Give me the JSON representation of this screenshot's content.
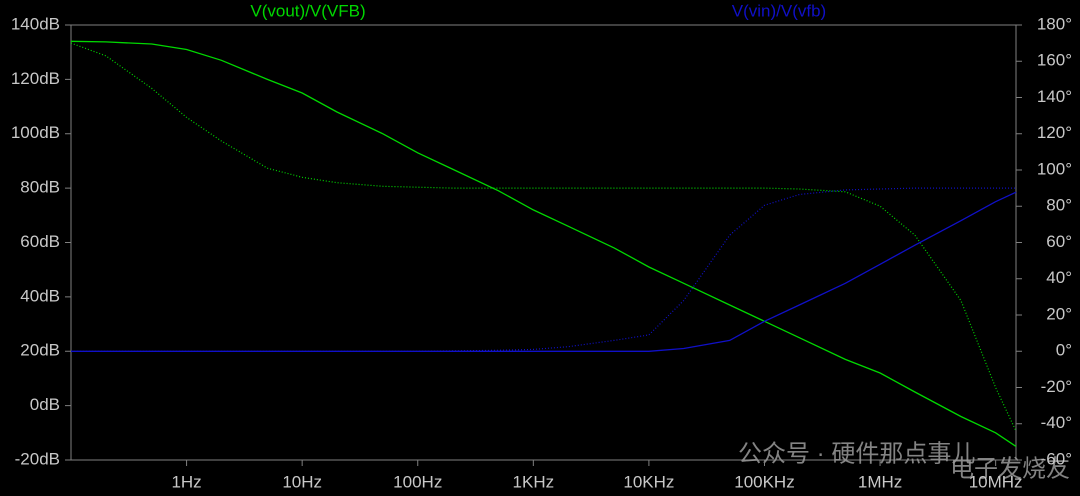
{
  "chart_data": {
    "type": "line",
    "xscale": "log",
    "grid": false,
    "x": [
      0.1,
      0.2,
      0.5,
      1,
      2,
      5,
      10,
      20,
      50,
      100,
      200,
      500,
      1000,
      2000,
      5000,
      10000,
      20000,
      50000,
      100000,
      200000,
      500000,
      1000000,
      2000000,
      5000000,
      10000000,
      15000000
    ],
    "xlim": [
      0.1,
      15000000
    ],
    "xticks": [
      {
        "value": 1,
        "label": "1Hz"
      },
      {
        "value": 10,
        "label": "10Hz"
      },
      {
        "value": 100,
        "label": "100Hz"
      },
      {
        "value": 1000,
        "label": "1KHz"
      },
      {
        "value": 10000,
        "label": "10KHz"
      },
      {
        "value": 100000,
        "label": "100KHz"
      },
      {
        "value": 1000000,
        "label": "1MHz"
      },
      {
        "value": 10000000,
        "label": "10MHz"
      }
    ],
    "ylim": [
      -20,
      140
    ],
    "yticks": [
      {
        "value": 140,
        "label": "140dB"
      },
      {
        "value": 120,
        "label": "120dB"
      },
      {
        "value": 100,
        "label": "100dB"
      },
      {
        "value": 80,
        "label": "80dB"
      },
      {
        "value": 60,
        "label": "60dB"
      },
      {
        "value": 40,
        "label": "40dB"
      },
      {
        "value": 20,
        "label": "20dB"
      },
      {
        "value": 0,
        "label": "0dB"
      },
      {
        "value": -20,
        "label": "-20dB"
      }
    ],
    "y2lim": [
      -60,
      180
    ],
    "y2ticks": [
      {
        "value": 180,
        "label": "180°"
      },
      {
        "value": 160,
        "label": "160°"
      },
      {
        "value": 140,
        "label": "140°"
      },
      {
        "value": 120,
        "label": "120°"
      },
      {
        "value": 100,
        "label": "100°"
      },
      {
        "value": 80,
        "label": "80°"
      },
      {
        "value": 60,
        "label": "60°"
      },
      {
        "value": 40,
        "label": "40°"
      },
      {
        "value": 20,
        "label": "20°"
      },
      {
        "value": 0,
        "label": "0°"
      },
      {
        "value": -20,
        "label": "-20°"
      },
      {
        "value": -40,
        "label": "-40°"
      },
      {
        "value": -60,
        "label": "-60°"
      }
    ],
    "series": [
      {
        "name": "V(vout)/V(VFB)",
        "color": "#00d800",
        "linestyle": "solid",
        "values": [
          134,
          133.8,
          133,
          131,
          127,
          120,
          115,
          108,
          100,
          93,
          87,
          79,
          72,
          66,
          58,
          51,
          45,
          37,
          31,
          25,
          17,
          12,
          5,
          -4,
          -10,
          -15
        ]
      },
      {
        "color": "#00d800",
        "linestyle": "dotted",
        "axis": "y2",
        "values": [
          170,
          163,
          145,
          129,
          116,
          101,
          96,
          93,
          91,
          90.5,
          90,
          90,
          90,
          90,
          90,
          90,
          90,
          90,
          90,
          89.5,
          88,
          80,
          64,
          28,
          -20,
          -44
        ]
      },
      {
        "name": "V(vin)/V(vfb)",
        "color": "#1010c8",
        "linestyle": "solid",
        "values": [
          20,
          20,
          20,
          20,
          20,
          20,
          20,
          20,
          20,
          20,
          20,
          20,
          20,
          20,
          20,
          20,
          21,
          24,
          31,
          37,
          45,
          52,
          59,
          68,
          75,
          78.5
        ]
      },
      {
        "color": "#1010c8",
        "linestyle": "dotted",
        "axis": "y2",
        "values": [
          0,
          0,
          0,
          0,
          0,
          0,
          0,
          0,
          0,
          0,
          0.2,
          0.5,
          1,
          2.5,
          6,
          9,
          28,
          64,
          80.5,
          86.5,
          89,
          89.5,
          90,
          90,
          90,
          90
        ]
      }
    ]
  },
  "watermark": [
    "公众号 · 硬件那点事儿",
    "电子发烧友"
  ]
}
